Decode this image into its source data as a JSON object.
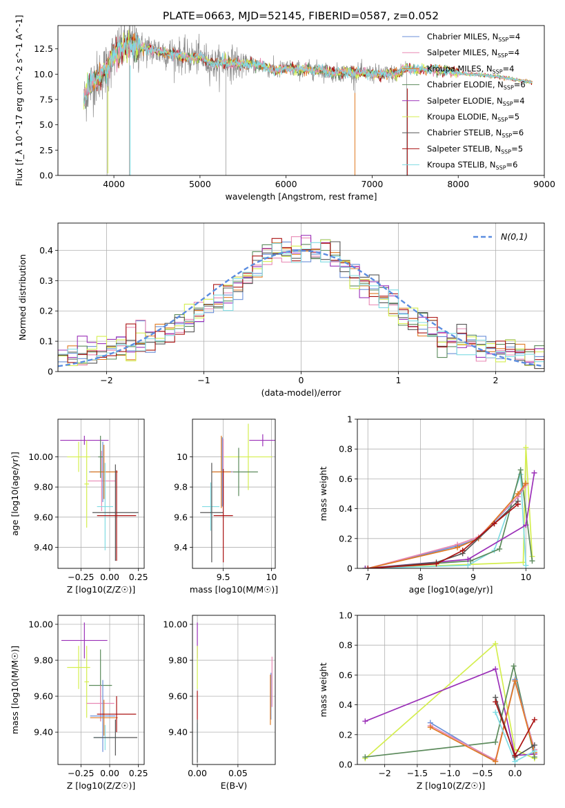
{
  "figure_title": "PLATE=0663, MJD=52145, FIBERID=0587, z=0.052",
  "colors": {
    "Chabrier MILES": "#6a8fd8",
    "Salpeter MILES": "#e887b3",
    "Kroupa MILES": "#e07a22",
    "Chabrier ELODIE": "#5b8a5b",
    "Salpeter ELODIE": "#9b30b8",
    "Kroupa ELODIE": "#d4ee4e",
    "Chabrier STELIB": "#555555",
    "Salpeter STELIB": "#aa1111",
    "Kroupa STELIB": "#7fdbe2",
    "gaussian": "#5b8de0",
    "data": "#888888"
  },
  "chart_data": [
    {
      "id": "spectrum",
      "type": "line",
      "xlabel": "wavelength [Angstrom, rest frame]",
      "ylabel": "Flux [f_λ 10^-17 erg cm^-2 s^-1 A^-1]",
      "xlim": [
        3350,
        9000
      ],
      "ylim": [
        0,
        14.8
      ],
      "xticks": [
        4000,
        5000,
        6000,
        7000,
        8000,
        9000
      ],
      "yticks": [
        0.0,
        2.5,
        5.0,
        7.5,
        10.0,
        12.5
      ],
      "grid": false,
      "legend_placement": "top-right",
      "legend": [
        {
          "model": "Chabrier MILES",
          "n": "4"
        },
        {
          "model": "Salpeter MILES",
          "n": "4"
        },
        {
          "model": "Kroupa MILES",
          "n": "4"
        },
        {
          "model": "Chabrier ELODIE",
          "n": "6"
        },
        {
          "model": "Salpeter ELODIE",
          "n": "4"
        },
        {
          "model": "Kroupa ELODIE",
          "n": "5"
        },
        {
          "model": "Chabrier STELIB",
          "n": "6"
        },
        {
          "model": "Salpeter STELIB",
          "n": "5"
        },
        {
          "model": "Kroupa STELIB",
          "n": "6"
        }
      ],
      "continuum": [
        [
          3650,
          7.2
        ],
        [
          3700,
          8.6
        ],
        [
          3800,
          9.6
        ],
        [
          3900,
          10.4
        ],
        [
          4000,
          11.8
        ],
        [
          4100,
          12.6
        ],
        [
          4200,
          12.9
        ],
        [
          4300,
          12.6
        ],
        [
          4500,
          12.3
        ],
        [
          4700,
          12.0
        ],
        [
          4861,
          11.6
        ],
        [
          5000,
          11.7
        ],
        [
          5175,
          10.9
        ],
        [
          5300,
          11.2
        ],
        [
          5500,
          11.0
        ],
        [
          5700,
          10.9
        ],
        [
          5890,
          10.3
        ],
        [
          6000,
          10.6
        ],
        [
          6200,
          10.4
        ],
        [
          6400,
          10.4
        ],
        [
          6563,
          10.1
        ],
        [
          6700,
          10.2
        ],
        [
          6900,
          10.1
        ],
        [
          7100,
          10.0
        ],
        [
          7300,
          10.1
        ],
        [
          7400,
          10.6
        ],
        [
          7500,
          10.4
        ],
        [
          7700,
          10.5
        ],
        [
          7900,
          10.3
        ],
        [
          8100,
          10.0
        ],
        [
          8300,
          9.9
        ],
        [
          8500,
          9.7
        ],
        [
          8700,
          9.4
        ],
        [
          8860,
          9.2
        ]
      ],
      "noise_end_wavelength": 7400,
      "model_start_wavelength": 3650
    },
    {
      "id": "residuals",
      "type": "histogram",
      "xlabel": "(data-model)/error",
      "ylabel": "Normed distribution",
      "xlim": [
        -2.5,
        2.5
      ],
      "ylim": [
        0,
        0.49
      ],
      "xticks": [
        -2,
        -1,
        0,
        1,
        2
      ],
      "yticks": [
        0.0,
        0.1,
        0.2,
        0.3,
        0.4
      ],
      "grid": true,
      "bin_width": 0.1,
      "legend_label": "N(0,1)",
      "legend_placement": "top-right"
    },
    {
      "id": "age_vs_Z",
      "type": "scatter",
      "xlabel": "Z [log10(Z/Z☉)]",
      "ylabel": "age  [log10(age/yr)]",
      "xlim": [
        -0.45,
        0.3
      ],
      "ylim": [
        9.26,
        10.25
      ],
      "xticks": [
        -0.25,
        0.0,
        0.25
      ],
      "yticks": [
        9.4,
        9.6,
        9.8,
        10.0
      ],
      "grid": true,
      "points": [
        {
          "model": "Salpeter ELODIE",
          "x": -0.22,
          "xerr": 0.21,
          "y": 10.11,
          "yerr": 0.03
        },
        {
          "model": "Kroupa ELODIE",
          "x": -0.27,
          "xerr": 0.1,
          "y": 10.0,
          "yerr": 0.1
        },
        {
          "model": "Kroupa ELODIE",
          "x": -0.2,
          "xerr": 0.02,
          "y": 9.82,
          "yerr": 0.29
        },
        {
          "model": "Salpeter MILES",
          "x": -0.07,
          "xerr": 0.12,
          "y": 9.84,
          "yerr": 0.2
        },
        {
          "model": "Chabrier MILES",
          "x": -0.06,
          "xerr": 0.12,
          "y": 9.9,
          "yerr": 0.2
        },
        {
          "model": "Kroupa MILES",
          "x": -0.05,
          "xerr": 0.12,
          "y": 9.9,
          "yerr": 0.18
        },
        {
          "model": "Chabrier ELODIE",
          "x": -0.08,
          "xerr": 0.02,
          "y": 10.0,
          "yerr": 0.14
        },
        {
          "model": "Kroupa STELIB",
          "x": -0.04,
          "xerr": 0.07,
          "y": 9.67,
          "yerr": 0.29
        },
        {
          "model": "Chabrier STELIB",
          "x": 0.05,
          "xerr": 0.2,
          "y": 9.63,
          "yerr": 0.32
        },
        {
          "model": "Salpeter STELIB",
          "x": 0.06,
          "xerr": 0.17,
          "y": 9.61,
          "yerr": 0.3
        }
      ]
    },
    {
      "id": "age_vs_mass",
      "type": "scatter",
      "xlabel": "mass [log10(M/M☉)]",
      "ylabel": "",
      "xlim": [
        9.18,
        10.04
      ],
      "ylim": [
        9.26,
        10.25
      ],
      "xticks": [
        9.5,
        10.0
      ],
      "yticks": [
        9.4,
        9.6,
        9.8,
        10.0
      ],
      "grid": true,
      "points": [
        {
          "model": "Salpeter ELODIE",
          "x": 9.91,
          "xerr": 0.14,
          "y": 10.11,
          "yerr": 0.04
        },
        {
          "model": "Kroupa ELODIE",
          "x": 9.76,
          "xerr": 0.25,
          "y": 10.0,
          "yerr": 0.22
        },
        {
          "model": "Chabrier ELODIE",
          "x": 9.66,
          "xerr": 0.2,
          "y": 9.9,
          "yerr": 0.16
        },
        {
          "model": "Salpeter MILES",
          "x": 9.5,
          "xerr": 0.1,
          "y": 9.9,
          "yerr": 0.22
        },
        {
          "model": "Chabrier MILES",
          "x": 9.49,
          "xerr": 0.1,
          "y": 9.9,
          "yerr": 0.23
        },
        {
          "model": "Kroupa MILES",
          "x": 9.48,
          "xerr": 0.1,
          "y": 9.9,
          "yerr": 0.24
        },
        {
          "model": "Kroupa STELIB",
          "x": 9.37,
          "xerr": 0.09,
          "y": 9.67,
          "yerr": 0.16
        },
        {
          "model": "Chabrier STELIB",
          "x": 9.38,
          "xerr": 0.12,
          "y": 9.63,
          "yerr": 0.33
        },
        {
          "model": "Salpeter STELIB",
          "x": 9.5,
          "xerr": 0.1,
          "y": 9.61,
          "yerr": 0.31
        }
      ]
    },
    {
      "id": "massweight_vs_age",
      "type": "line",
      "xlabel": "age  [log10(age/yr)]",
      "ylabel": "mass weight",
      "xlim": [
        6.8,
        10.35
      ],
      "ylim": [
        0,
        1.0
      ],
      "xticks": [
        7,
        8,
        9,
        10
      ],
      "yticks": [
        0.0,
        0.2,
        0.4,
        0.6,
        0.8,
        1.0
      ],
      "grid": true,
      "series": [
        {
          "model": "Kroupa ELODIE",
          "x": [
            6.95,
            9.95,
            10.0,
            10.12
          ],
          "y": [
            0.0,
            0.04,
            0.81,
            0.08
          ]
        },
        {
          "model": "Kroupa STELIB",
          "x": [
            6.95,
            8.9,
            9.4,
            9.9,
            10.0
          ],
          "y": [
            0.0,
            0.02,
            0.12,
            0.63,
            0.02
          ]
        },
        {
          "model": "Chabrier ELODIE",
          "x": [
            6.95,
            8.95,
            9.5,
            9.9,
            10.12
          ],
          "y": [
            0.0,
            0.05,
            0.13,
            0.66,
            0.05
          ]
        },
        {
          "model": "Salpeter ELODIE",
          "x": [
            6.95,
            8.9,
            10.0,
            10.16
          ],
          "y": [
            0.0,
            0.06,
            0.29,
            0.64
          ]
        },
        {
          "model": "Chabrier MILES",
          "x": [
            7.0,
            8.7,
            9.1,
            9.85,
            10.0
          ],
          "y": [
            0.0,
            0.15,
            0.2,
            0.48,
            0.57
          ]
        },
        {
          "model": "Salpeter MILES",
          "x": [
            7.0,
            8.7,
            9.1,
            9.85,
            10.0
          ],
          "y": [
            0.0,
            0.16,
            0.21,
            0.48,
            0.56
          ]
        },
        {
          "model": "Kroupa MILES",
          "x": [
            7.0,
            8.7,
            9.1,
            9.85,
            10.0
          ],
          "y": [
            0.0,
            0.14,
            0.2,
            0.5,
            0.57
          ]
        },
        {
          "model": "Chabrier STELIB",
          "x": [
            7.0,
            8.3,
            8.8,
            9.4,
            9.85
          ],
          "y": [
            0.0,
            0.04,
            0.1,
            0.3,
            0.45
          ]
        },
        {
          "model": "Salpeter STELIB",
          "x": [
            7.0,
            8.3,
            8.8,
            9.4,
            9.85
          ],
          "y": [
            0.0,
            0.03,
            0.12,
            0.3,
            0.43
          ]
        }
      ]
    },
    {
      "id": "mass_vs_Z",
      "type": "scatter",
      "xlabel": "Z [log10(Z/Z☉)]",
      "ylabel": "mass [log10(M/M☉)]",
      "xlim": [
        -0.45,
        0.3
      ],
      "ylim": [
        9.22,
        10.05
      ],
      "xticks": [
        -0.25,
        0.0,
        0.25
      ],
      "yticks": [
        9.4,
        9.6,
        9.8,
        10.0
      ],
      "grid": true,
      "points": [
        {
          "model": "Salpeter ELODIE",
          "x": -0.22,
          "xerr": 0.2,
          "y": 9.91,
          "yerr": 0.1
        },
        {
          "model": "Kroupa ELODIE",
          "x": -0.27,
          "xerr": 0.1,
          "y": 9.76,
          "yerr": 0.12
        },
        {
          "model": "Kroupa ELODIE",
          "x": -0.2,
          "xerr": 0.02,
          "y": 9.68,
          "yerr": 0.2
        },
        {
          "model": "Chabrier ELODIE",
          "x": -0.08,
          "xerr": 0.1,
          "y": 9.66,
          "yerr": 0.2
        },
        {
          "model": "Salpeter MILES",
          "x": -0.08,
          "xerr": 0.12,
          "y": 9.56,
          "yerr": 0.1
        },
        {
          "model": "Chabrier MILES",
          "x": -0.06,
          "xerr": 0.11,
          "y": 9.49,
          "yerr": 0.2
        },
        {
          "model": "Kroupa MILES",
          "x": -0.05,
          "xerr": 0.12,
          "y": 9.48,
          "yerr": 0.1
        },
        {
          "model": "Kroupa STELIB",
          "x": -0.04,
          "xerr": 0.1,
          "y": 9.37,
          "yerr": 0.07
        },
        {
          "model": "Chabrier STELIB",
          "x": 0.05,
          "xerr": 0.19,
          "y": 9.37,
          "yerr": 0.1
        },
        {
          "model": "Salpeter STELIB",
          "x": 0.06,
          "xerr": 0.17,
          "y": 9.5,
          "yerr": 0.1
        }
      ]
    },
    {
      "id": "mass_vs_EBV",
      "type": "scatter",
      "xlabel": "E(B-V)",
      "ylabel": "",
      "xlim": [
        -0.006,
        0.096
      ],
      "ylim": [
        9.22,
        10.05
      ],
      "xticks": [
        0.0,
        0.05
      ],
      "yticks": [
        9.4,
        9.6,
        9.8,
        10.0
      ],
      "grid": true,
      "points": [
        {
          "model": "Salpeter ELODIE",
          "x": 0.0,
          "xerr": 0.0,
          "y": 9.91,
          "yerr": 0.1
        },
        {
          "model": "Kroupa ELODIE",
          "x": 0.0,
          "xerr": 0.0,
          "y": 9.76,
          "yerr": 0.12
        },
        {
          "model": "Salpeter STELIB",
          "x": 0.0,
          "xerr": 0.0,
          "y": 9.55,
          "yerr": 0.08
        },
        {
          "model": "Kroupa STELIB",
          "x": 0.0,
          "xerr": 0.0,
          "y": 9.37,
          "yerr": 0.08
        },
        {
          "model": "Chabrier STELIB",
          "x": 0.0,
          "xerr": 0.0,
          "y": 9.35,
          "yerr": 0.12
        },
        {
          "model": "Salpeter MILES",
          "x": 0.092,
          "xerr": 0.0,
          "y": 9.68,
          "yerr": 0.14
        },
        {
          "model": "Chabrier MILES",
          "x": 0.0907,
          "xerr": 0.0,
          "y": 9.6,
          "yerr": 0.13
        },
        {
          "model": "Kroupa MILES",
          "x": 0.09,
          "xerr": 0.0,
          "y": 9.58,
          "yerr": 0.14
        }
      ]
    },
    {
      "id": "massweight_vs_Z",
      "type": "line",
      "xlabel": "Z [log10(Z/Z☉)]",
      "ylabel": "mass weight",
      "xlim": [
        -2.42,
        0.45
      ],
      "ylim": [
        0,
        1.0
      ],
      "xticks": [
        -2.0,
        -1.5,
        -1.0,
        -0.5,
        0.0
      ],
      "yticks": [
        0.0,
        0.2,
        0.4,
        0.6,
        0.8,
        1.0
      ],
      "grid": true,
      "series": [
        {
          "model": "Kroupa ELODIE",
          "x": [
            -2.3,
            -0.3,
            0.0,
            0.3
          ],
          "y": [
            0.04,
            0.81,
            0.1,
            0.04
          ]
        },
        {
          "model": "Salpeter ELODIE",
          "x": [
            -2.3,
            -0.3,
            0.0,
            0.3
          ],
          "y": [
            0.29,
            0.64,
            0.06,
            0.07
          ]
        },
        {
          "model": "Chabrier ELODIE",
          "x": [
            -2.3,
            -0.3,
            -0.02,
            0.3
          ],
          "y": [
            0.05,
            0.15,
            0.66,
            0.05
          ]
        },
        {
          "model": "Chabrier MILES",
          "x": [
            -1.3,
            -0.3,
            0.0,
            0.3
          ],
          "y": [
            0.28,
            0.02,
            0.57,
            0.1
          ]
        },
        {
          "model": "Salpeter MILES",
          "x": [
            -1.3,
            -0.3,
            0.0,
            0.3
          ],
          "y": [
            0.26,
            0.03,
            0.56,
            0.1
          ]
        },
        {
          "model": "Kroupa MILES",
          "x": [
            -1.3,
            -0.3,
            0.0,
            0.3
          ],
          "y": [
            0.25,
            0.02,
            0.56,
            0.08
          ]
        },
        {
          "model": "Kroupa STELIB",
          "x": [
            -0.3,
            0.0,
            0.3
          ],
          "y": [
            0.35,
            0.02,
            0.09
          ]
        },
        {
          "model": "Chabrier STELIB",
          "x": [
            -0.3,
            0.0,
            0.3
          ],
          "y": [
            0.45,
            0.05,
            0.13
          ]
        },
        {
          "model": "Salpeter STELIB",
          "x": [
            -0.3,
            0.0,
            0.3
          ],
          "y": [
            0.42,
            0.06,
            0.3
          ]
        }
      ]
    }
  ]
}
